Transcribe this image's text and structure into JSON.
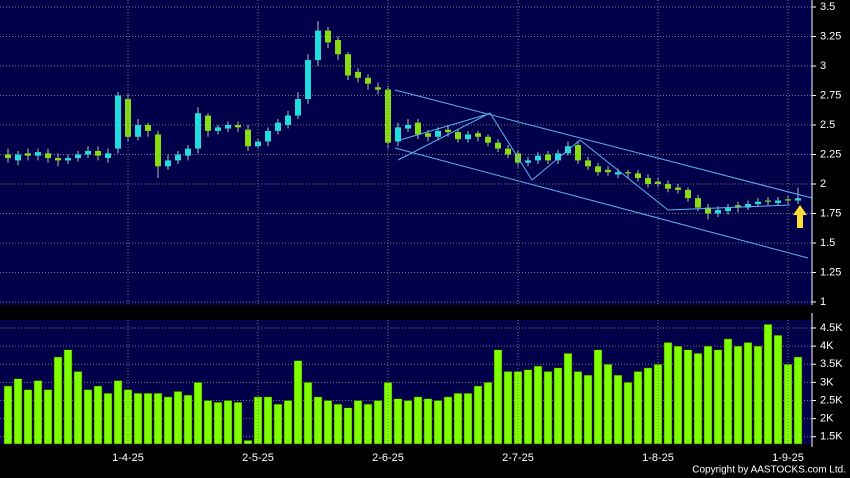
{
  "chart_data": [
    {
      "type": "candlestick",
      "up_color": "#22dddd",
      "down_color": "#88dd11",
      "grid": true,
      "ylim": [
        1,
        3.5
      ],
      "yticks": [
        1,
        1.25,
        1.5,
        1.75,
        2,
        2.25,
        2.5,
        2.75,
        3,
        3.25,
        3.5
      ],
      "open": [
        2.25,
        2.2,
        2.26,
        2.24,
        2.26,
        2.22,
        2.2,
        2.22,
        2.25,
        2.28,
        2.22,
        2.3,
        2.72,
        2.4,
        2.5,
        2.42,
        2.15,
        2.2,
        2.24,
        2.3,
        2.58,
        2.45,
        2.47,
        2.5,
        2.46,
        2.32,
        2.36,
        2.45,
        2.5,
        2.58,
        2.72,
        3.05,
        3.3,
        3.22,
        3.1,
        2.95,
        2.9,
        2.82,
        2.8,
        2.36,
        2.47,
        2.52,
        2.43,
        2.4,
        2.46,
        2.44,
        2.38,
        2.43,
        2.4,
        2.35,
        2.3,
        2.26,
        2.18,
        2.2,
        2.25,
        2.2,
        2.26,
        2.33,
        2.2,
        2.15,
        2.12,
        2.08,
        2.1,
        2.09,
        2.05,
        2.02,
        2.0,
        1.97,
        1.95,
        1.88,
        1.8,
        1.75,
        1.77,
        1.82,
        1.8,
        1.83,
        1.86,
        1.84,
        1.87,
        1.86
      ],
      "high": [
        2.3,
        2.28,
        2.3,
        2.3,
        2.3,
        2.26,
        2.25,
        2.28,
        2.32,
        2.32,
        2.3,
        2.78,
        2.76,
        2.55,
        2.52,
        2.45,
        2.25,
        2.28,
        2.33,
        2.65,
        2.6,
        2.5,
        2.53,
        2.53,
        2.5,
        2.38,
        2.48,
        2.55,
        2.62,
        2.78,
        3.1,
        3.38,
        3.33,
        3.25,
        3.12,
        2.98,
        2.93,
        2.86,
        2.83,
        2.52,
        2.55,
        2.55,
        2.46,
        2.48,
        2.49,
        2.46,
        2.45,
        2.45,
        2.42,
        2.38,
        2.33,
        2.28,
        2.23,
        2.27,
        2.28,
        2.29,
        2.36,
        2.36,
        2.23,
        2.18,
        2.15,
        2.13,
        2.12,
        2.12,
        2.08,
        2.05,
        2.03,
        2.0,
        1.97,
        1.91,
        1.83,
        1.81,
        1.83,
        1.85,
        1.86,
        1.88,
        1.89,
        1.89,
        1.9,
        1.97
      ],
      "low": [
        2.18,
        2.16,
        2.2,
        2.2,
        2.18,
        2.15,
        2.17,
        2.19,
        2.22,
        2.2,
        2.18,
        2.26,
        2.36,
        2.37,
        2.4,
        2.05,
        2.12,
        2.17,
        2.2,
        2.26,
        2.4,
        2.42,
        2.44,
        2.44,
        2.28,
        2.3,
        2.32,
        2.42,
        2.47,
        2.55,
        2.68,
        3.0,
        3.15,
        3.05,
        2.88,
        2.86,
        2.8,
        2.76,
        2.3,
        2.32,
        2.44,
        2.38,
        2.36,
        2.37,
        2.4,
        2.35,
        2.35,
        2.36,
        2.32,
        2.27,
        2.22,
        2.14,
        2.15,
        2.17,
        2.17,
        2.17,
        2.24,
        2.17,
        2.12,
        2.07,
        2.07,
        2.05,
        2.05,
        2.02,
        1.97,
        1.97,
        1.93,
        1.92,
        1.85,
        1.77,
        1.7,
        1.72,
        1.74,
        1.76,
        1.78,
        1.81,
        1.82,
        1.82,
        1.83,
        1.83
      ],
      "close": [
        2.22,
        2.25,
        2.24,
        2.27,
        2.22,
        2.2,
        2.22,
        2.25,
        2.28,
        2.24,
        2.26,
        2.75,
        2.4,
        2.5,
        2.45,
        2.15,
        2.2,
        2.25,
        2.3,
        2.6,
        2.45,
        2.48,
        2.5,
        2.48,
        2.32,
        2.36,
        2.45,
        2.52,
        2.58,
        2.72,
        3.05,
        3.3,
        3.2,
        3.1,
        2.92,
        2.9,
        2.85,
        2.8,
        2.35,
        2.48,
        2.5,
        2.42,
        2.4,
        2.45,
        2.44,
        2.38,
        2.42,
        2.4,
        2.35,
        2.3,
        2.25,
        2.18,
        2.2,
        2.24,
        2.2,
        2.26,
        2.32,
        2.2,
        2.15,
        2.1,
        2.1,
        2.1,
        2.09,
        2.05,
        2.0,
        2.0,
        1.96,
        1.95,
        1.88,
        1.8,
        1.75,
        1.78,
        1.8,
        1.8,
        1.83,
        1.85,
        1.85,
        1.86,
        1.86,
        1.88
      ]
    },
    {
      "type": "bar",
      "color": "#80ff00",
      "grid": true,
      "ylim": [
        1300,
        4720
      ],
      "yticks": [
        {
          "value": 1500,
          "label": "1.5K"
        },
        {
          "value": 2000,
          "label": "2K"
        },
        {
          "value": 2500,
          "label": "2.5K"
        },
        {
          "value": 3000,
          "label": "3K"
        },
        {
          "value": 3500,
          "label": "3.5K"
        },
        {
          "value": 4000,
          "label": "4K"
        },
        {
          "value": 4500,
          "label": "4.5K"
        }
      ],
      "categories": [
        null,
        null,
        null,
        null,
        null,
        null,
        null,
        null,
        null,
        null,
        null,
        null,
        "1-4-25",
        null,
        null,
        null,
        null,
        null,
        null,
        null,
        null,
        null,
        null,
        null,
        null,
        "2-5-25",
        null,
        null,
        null,
        null,
        null,
        null,
        null,
        null,
        null,
        null,
        null,
        null,
        "2-6-25",
        null,
        null,
        null,
        null,
        null,
        null,
        null,
        null,
        null,
        null,
        null,
        null,
        "2-7-25",
        null,
        null,
        null,
        null,
        null,
        null,
        null,
        null,
        null,
        null,
        null,
        null,
        null,
        "1-8-25",
        null,
        null,
        null,
        null,
        null,
        null,
        null,
        null,
        null,
        null,
        null,
        null,
        "1-9-25",
        null
      ],
      "values": [
        2900,
        3100,
        2800,
        3050,
        2800,
        3700,
        3900,
        3300,
        2800,
        2900,
        2700,
        3050,
        2800,
        2700,
        2700,
        2700,
        2600,
        2750,
        2650,
        3000,
        2500,
        2450,
        2500,
        2450,
        1400,
        2600,
        2600,
        2400,
        2500,
        3600,
        3000,
        2600,
        2500,
        2400,
        2300,
        2500,
        2400,
        2500,
        3000,
        2550,
        2500,
        2600,
        2550,
        2500,
        2600,
        2700,
        2700,
        2900,
        3000,
        3900,
        3300,
        3300,
        3350,
        3450,
        3300,
        3400,
        3800,
        3300,
        3200,
        3900,
        3500,
        3200,
        3000,
        3300,
        3400,
        3500,
        4100,
        4000,
        3900,
        3800,
        4000,
        3900,
        4200,
        4000,
        4100,
        4000,
        4600,
        4300,
        3500,
        3700
      ]
    }
  ],
  "copyright": "Copyright by AASTOCKS.com Ltd."
}
